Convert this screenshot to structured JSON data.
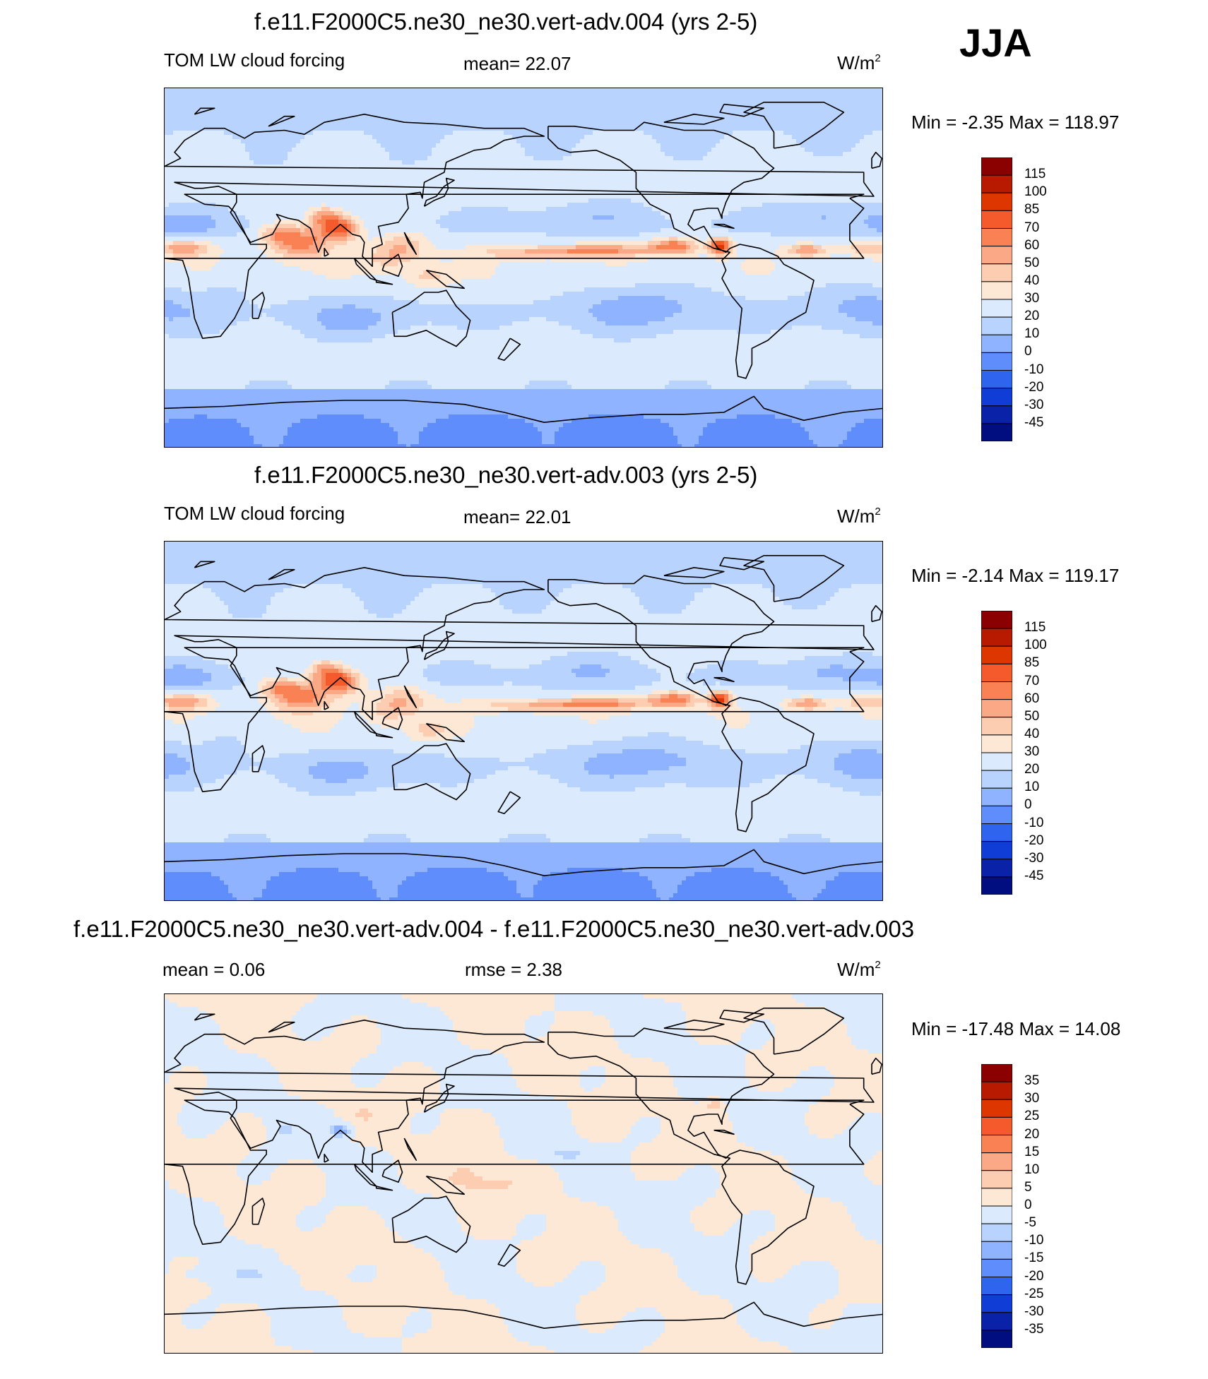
{
  "season": "JJA",
  "panels": [
    {
      "title": "f.e11.F2000C5.ne30_ne30.vert-adv.004 (yrs 2-5)",
      "left_label": "TOM LW cloud forcing",
      "center_label": "mean=  22.07",
      "units": "W/m",
      "units_sup": "2",
      "min_max": "Min =  -2.35 Max = 118.97",
      "map_mode": "field",
      "map_variant": 0,
      "colorbar": {
        "levels": [
          "115",
          "100",
          "85",
          "70",
          "60",
          "50",
          "40",
          "30",
          "20",
          "10",
          "0",
          "-10",
          "-20",
          "-30",
          "-45"
        ],
        "colors": [
          "#8b0000",
          "#b71a00",
          "#de3600",
          "#f55a2c",
          "#fa8154",
          "#fba886",
          "#fccdb0",
          "#fde8d6",
          "#dbeafc",
          "#b8d4fe",
          "#8fb3fe",
          "#5f8dfb",
          "#2f65ee",
          "#0f3dd6",
          "#0a22a8",
          "#000e80"
        ]
      }
    },
    {
      "title": "f.e11.F2000C5.ne30_ne30.vert-adv.003 (yrs 2-5)",
      "left_label": "TOM LW cloud forcing",
      "center_label": "mean=  22.01",
      "units": "W/m",
      "units_sup": "2",
      "min_max": "Min =  -2.14 Max = 119.17",
      "map_mode": "field",
      "map_variant": 1,
      "colorbar": {
        "levels": [
          "115",
          "100",
          "85",
          "70",
          "60",
          "50",
          "40",
          "30",
          "20",
          "10",
          "0",
          "-10",
          "-20",
          "-30",
          "-45"
        ],
        "colors": [
          "#8b0000",
          "#b71a00",
          "#de3600",
          "#f55a2c",
          "#fa8154",
          "#fba886",
          "#fccdb0",
          "#fde8d6",
          "#dbeafc",
          "#b8d4fe",
          "#8fb3fe",
          "#5f8dfb",
          "#2f65ee",
          "#0f3dd6",
          "#0a22a8",
          "#000e80"
        ]
      }
    },
    {
      "title": "f.e11.F2000C5.ne30_ne30.vert-adv.004 - f.e11.F2000C5.ne30_ne30.vert-adv.003",
      "left_label": "mean =   0.06",
      "center_label": "rmse =   2.38",
      "units": "W/m",
      "units_sup": "2",
      "min_max": "Min = -17.48 Max =  14.08",
      "map_mode": "diff",
      "map_variant": 2,
      "colorbar": {
        "levels": [
          "35",
          "30",
          "25",
          "20",
          "15",
          "10",
          "5",
          "0",
          "-5",
          "-10",
          "-15",
          "-20",
          "-25",
          "-30",
          "-35"
        ],
        "colors": [
          "#8b0000",
          "#b71a00",
          "#de3600",
          "#f55a2c",
          "#fa8154",
          "#fba886",
          "#fccdb0",
          "#fde8d6",
          "#dbeafc",
          "#b8d4fe",
          "#8fb3fe",
          "#5f8dfb",
          "#2f65ee",
          "#0f3dd6",
          "#0a22a8",
          "#000e80"
        ]
      }
    }
  ],
  "chart_data": [
    {
      "type": "heatmap",
      "title": "f.e11.F2000C5.ne30_ne30.vert-adv.004 (yrs 2-5)",
      "variable": "TOM LW cloud forcing",
      "season": "JJA",
      "units": "W/m2",
      "mean": 22.07,
      "min": -2.35,
      "max": 118.97,
      "contour_levels": [
        -45,
        -30,
        -20,
        -10,
        0,
        10,
        20,
        30,
        40,
        50,
        60,
        70,
        85,
        100,
        115
      ]
    },
    {
      "type": "heatmap",
      "title": "f.e11.F2000C5.ne30_ne30.vert-adv.003 (yrs 2-5)",
      "variable": "TOM LW cloud forcing",
      "season": "JJA",
      "units": "W/m2",
      "mean": 22.01,
      "min": -2.14,
      "max": 119.17,
      "contour_levels": [
        -45,
        -30,
        -20,
        -10,
        0,
        10,
        20,
        30,
        40,
        50,
        60,
        70,
        85,
        100,
        115
      ]
    },
    {
      "type": "heatmap",
      "title": "f.e11.F2000C5.ne30_ne30.vert-adv.004 - f.e11.F2000C5.ne30_ne30.vert-adv.003",
      "units": "W/m2",
      "mean": 0.06,
      "rmse": 2.38,
      "min": -17.48,
      "max": 14.08,
      "contour_levels": [
        -35,
        -30,
        -25,
        -20,
        -15,
        -10,
        -5,
        0,
        5,
        10,
        15,
        20,
        25,
        30,
        35
      ]
    }
  ]
}
